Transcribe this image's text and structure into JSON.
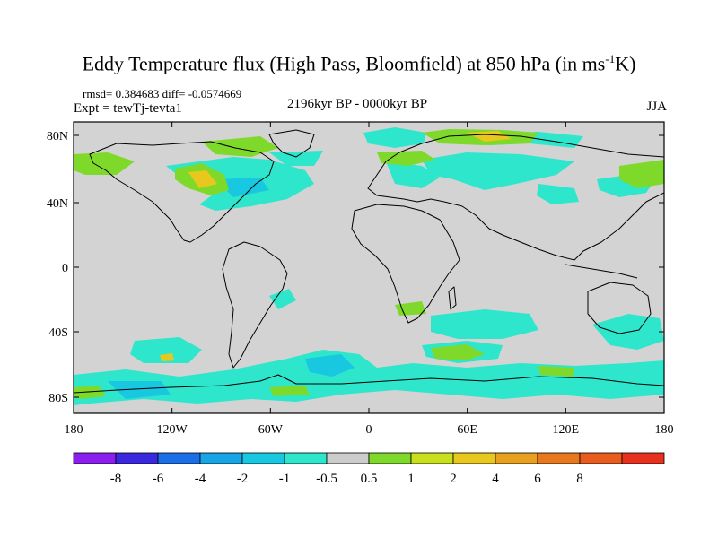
{
  "header": {
    "title_main": "Eddy Temperature flux (High Pass, Bloomfield) at 850 hPa (in ms",
    "title_sup": "-1",
    "title_end": "K)",
    "stats": "rmsd= 0.384683 diff= -0.0574669",
    "experiment": "Expt = tewTj-tevta1",
    "period": "2196kyr BP - 0000kyr BP",
    "season": "JJA"
  },
  "map": {
    "lat_labels": [
      "80N",
      "40N",
      "0",
      "40S",
      "80S"
    ],
    "lon_labels": [
      "180",
      "120W",
      "60W",
      "0",
      "60E",
      "120E",
      "180"
    ],
    "background_color": "#d3d3d3"
  },
  "colorbar": {
    "colors": [
      "#8a1ff0",
      "#3a28e0",
      "#1a6ee6",
      "#17a5e6",
      "#18c8e0",
      "#2ee6cc",
      "#cccccc",
      "#7fd92a",
      "#c8e01e",
      "#e8c81e",
      "#e8a01e",
      "#e8781e",
      "#e85c1e",
      "#e8301e"
    ],
    "labels": [
      "-8",
      "-6",
      "-4",
      "-2",
      "-1",
      "-0.5",
      "0.5",
      "1",
      "2",
      "4",
      "6",
      "8"
    ]
  }
}
